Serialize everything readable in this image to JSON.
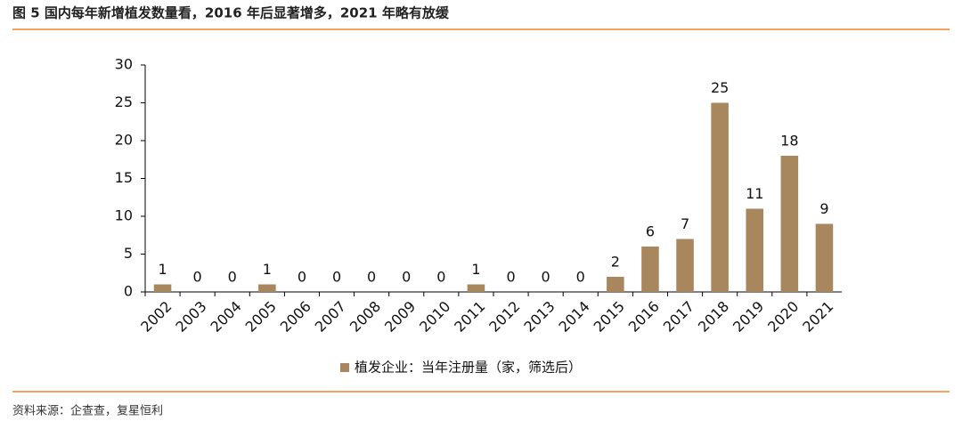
{
  "chart_data": {
    "type": "bar",
    "title": "图 5 国内每年新增植发数量看，2016 年后显著增多，2021 年略有放缓",
    "source": "资料来源：企查查，复星恒利",
    "categories": [
      "2002",
      "2003",
      "2004",
      "2005",
      "2006",
      "2007",
      "2008",
      "2009",
      "2010",
      "2011",
      "2012",
      "2013",
      "2014",
      "2015",
      "2016",
      "2017",
      "2018",
      "2019",
      "2020",
      "2021"
    ],
    "series": [
      {
        "name": "植发企业：当年注册量（家，筛选后）",
        "color": "#a8875f",
        "values": [
          1,
          0,
          0,
          1,
          0,
          0,
          0,
          0,
          0,
          1,
          0,
          0,
          0,
          2,
          6,
          7,
          25,
          11,
          18,
          9
        ]
      }
    ],
    "ylim": [
      0,
      30
    ],
    "yticks": [
      0,
      5,
      10,
      15,
      20,
      25,
      30
    ],
    "grid": false,
    "legend": "bottom"
  }
}
